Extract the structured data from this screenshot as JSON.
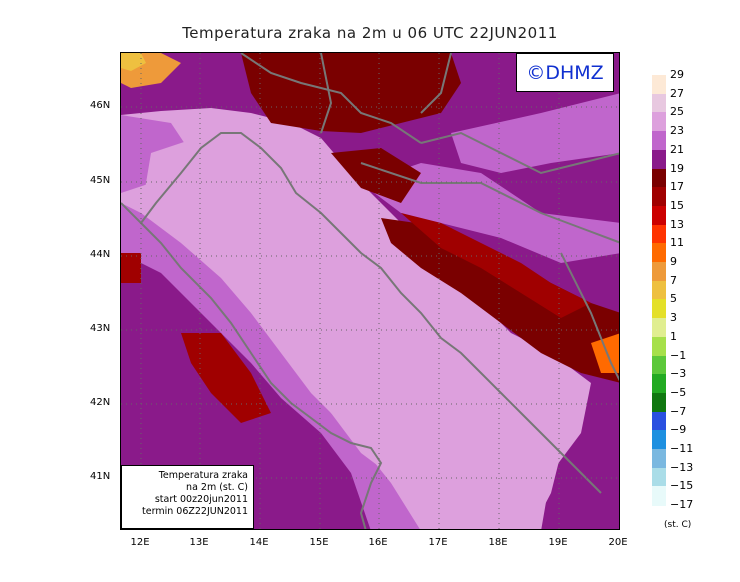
{
  "title": "Temperatura zraka na 2m u 06 UTC 22JUN2011",
  "copyright": "©DHMZ",
  "info_box": {
    "line1": "Temperatura zraka",
    "line2": "na 2m (st. C)",
    "line3": "start 00z20jun2011",
    "line4": "termin 06Z22JUN2011"
  },
  "lat_labels": [
    "46N",
    "45N",
    "44N",
    "43N",
    "42N",
    "41N"
  ],
  "lon_labels": [
    "12E",
    "13E",
    "14E",
    "15E",
    "16E",
    "17E",
    "18E",
    "19E",
    "20E"
  ],
  "legend": {
    "unit": "(st. C)",
    "labels": [
      "29",
      "27",
      "25",
      "23",
      "21",
      "19",
      "17",
      "15",
      "13",
      "11",
      "9",
      "7",
      "5",
      "3",
      "1",
      "−1",
      "−3",
      "−5",
      "−7",
      "−9",
      "−11",
      "−13",
      "−15",
      "−17"
    ],
    "colors": [
      "#fde9d6",
      "#e8c8e0",
      "#dda0dd",
      "#c066cc",
      "#8a1a8a",
      "#7a0000",
      "#a00000",
      "#cc0000",
      "#ff3300",
      "#ff6a00",
      "#ee9a3a",
      "#eec040",
      "#e4e028",
      "#e0ee90",
      "#a6e04a",
      "#5cc83a",
      "#22aa22",
      "#107810",
      "#2a50e0",
      "#1e90e0",
      "#7ab8e0",
      "#aadde8",
      "#e8fafa"
    ]
  },
  "map": {
    "lon_range": [
      11.7,
      20.0
    ],
    "lat_range": [
      40.3,
      46.75
    ],
    "grid": "dotted"
  }
}
